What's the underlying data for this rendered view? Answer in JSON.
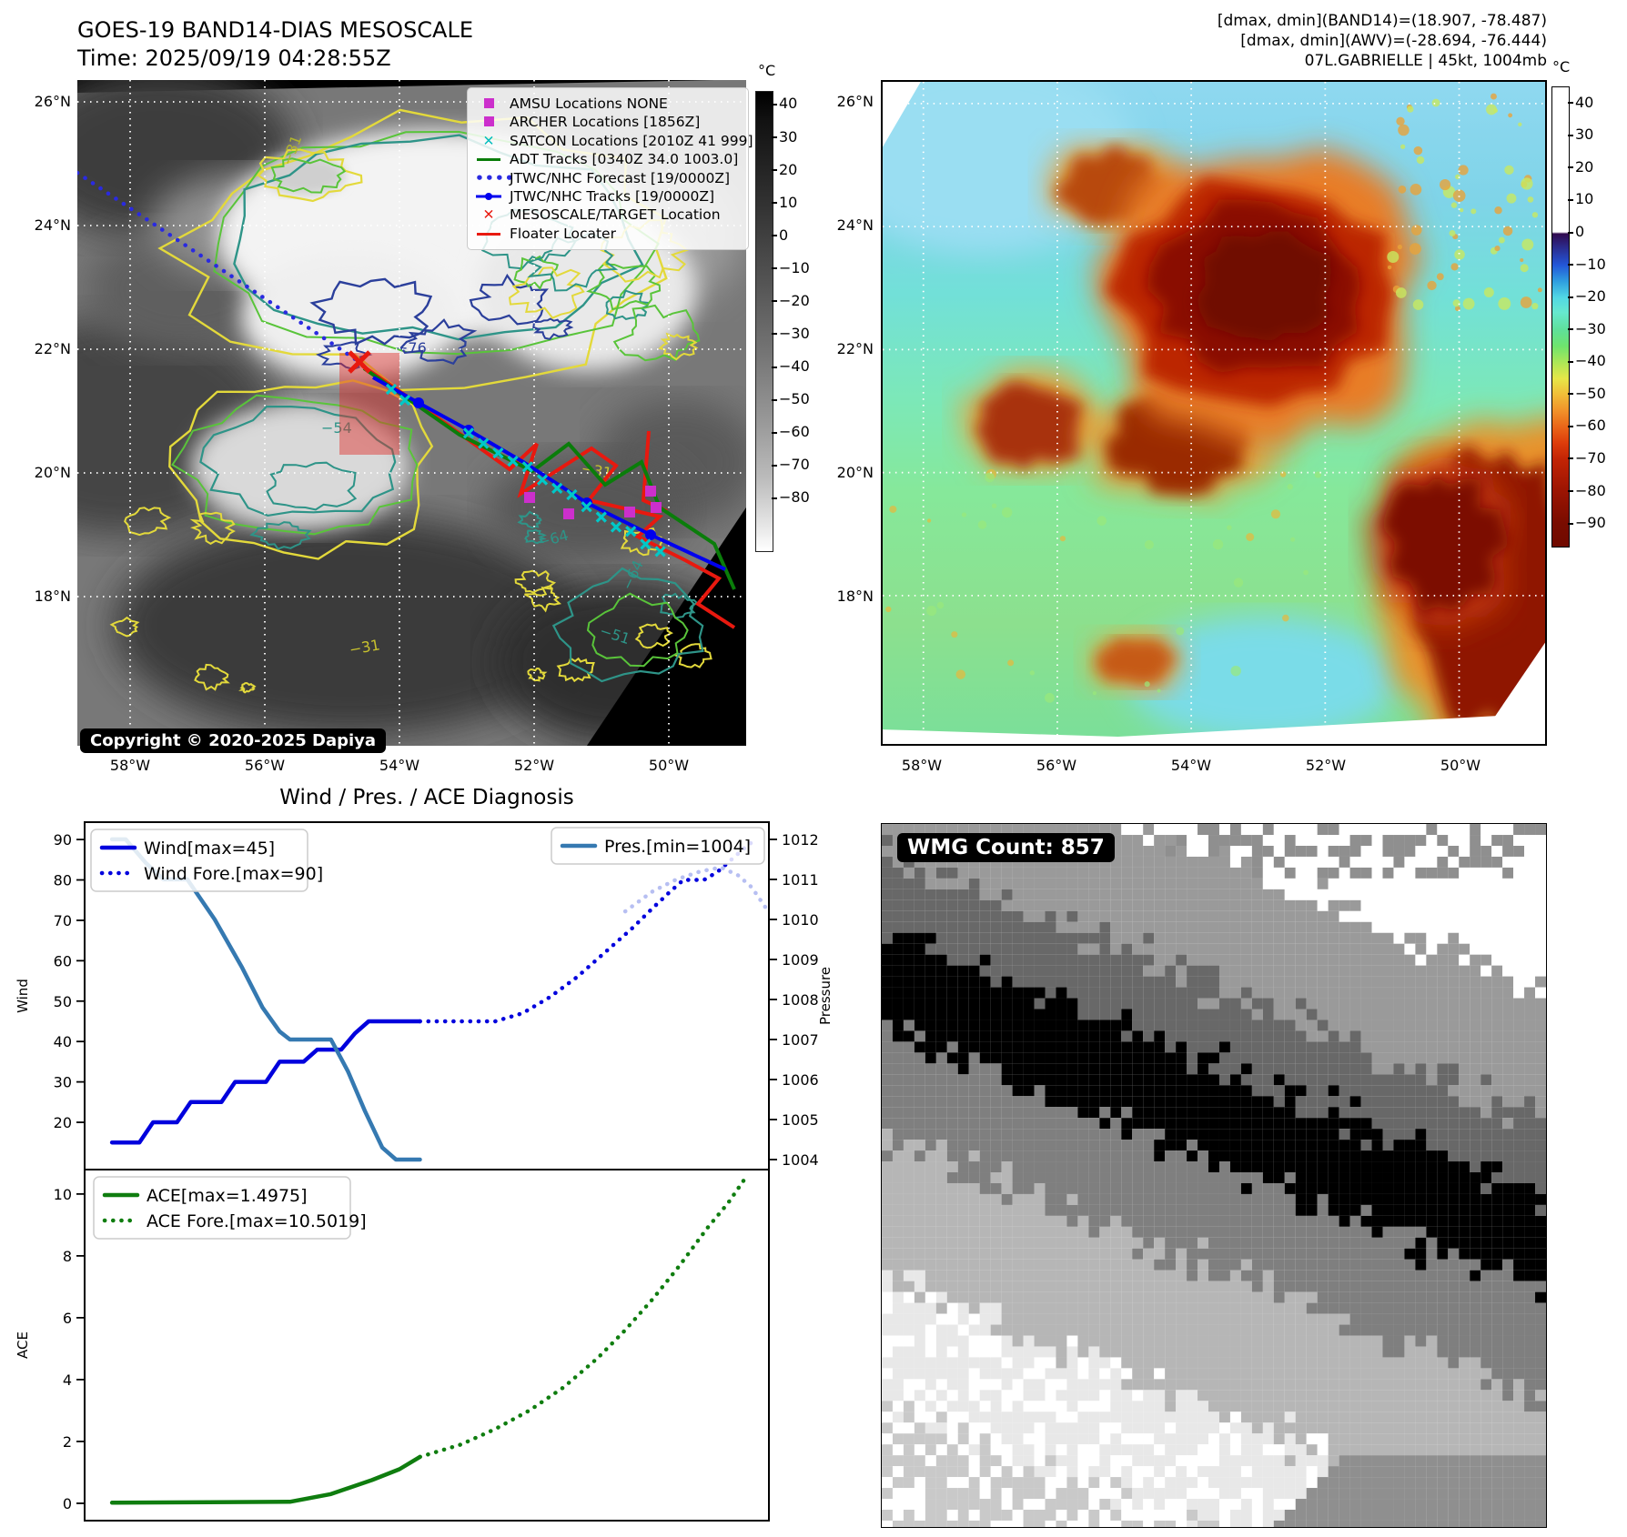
{
  "header": {
    "title_line1": "GOES-19 BAND14-DIAS MESOSCALE",
    "title_line2": "Time: 2025/09/19 04:28:55Z",
    "right_line1": "[dmax, dmin](BAND14)=(18.907, -78.487)",
    "right_line2": "[dmax, dmin](AWV)=(-28.694, -76.444)",
    "right_line3": "07L.GABRIELLE | 45kt, 1004mb"
  },
  "left_map": {
    "legend": [
      {
        "label": "AMSU Locations NONE",
        "symbol": "square",
        "color": "#cc2fcc"
      },
      {
        "label": "ARCHER Locations [1856Z]",
        "symbol": "square",
        "color": "#cc2fcc"
      },
      {
        "label": "SATCON Locations [2010Z 41 999]",
        "symbol": "x",
        "color": "#00bdbd"
      },
      {
        "label": "ADT Tracks [0340Z 34.0 1003.0]",
        "symbol": "line",
        "color": "#0a7d0a"
      },
      {
        "label": "JTWC/NHC Forecast [19/0000Z]",
        "symbol": "dotted",
        "color": "#2a2ae0"
      },
      {
        "label": "JTWC/NHC Tracks [19/0000Z]",
        "symbol": "line-dot",
        "color": "#0000ee"
      },
      {
        "label": "MESOSCALE/TARGET Location",
        "symbol": "x",
        "color": "#e8190f"
      },
      {
        "label": "Floater Locater",
        "symbol": "line",
        "color": "#e8190f"
      }
    ],
    "copyright": "Copyright © 2020-2025 Dapiya",
    "lat_ticks": [
      "26°N",
      "24°N",
      "22°N",
      "20°N",
      "18°N"
    ],
    "lon_ticks": [
      "58°W",
      "56°W",
      "54°W",
      "52°W",
      "50°W"
    ],
    "colorbar": {
      "title": "°C",
      "ticks": [
        40,
        30,
        20,
        10,
        0,
        -10,
        -20,
        -30,
        -40,
        -50,
        -60,
        -70,
        -80
      ]
    },
    "contour_labels": {
      "a": "−31",
      "b": "−76",
      "c": "−54",
      "d": "−64",
      "e": "−31",
      "f": "−64",
      "g": "−31",
      "h": "−51"
    }
  },
  "right_map": {
    "lat_ticks": [
      "26°N",
      "24°N",
      "22°N",
      "20°N",
      "18°N"
    ],
    "lon_ticks": [
      "58°W",
      "56°W",
      "54°W",
      "52°W",
      "50°W"
    ],
    "colorbar": {
      "title": "°C",
      "ticks": [
        40,
        30,
        20,
        10,
        0,
        -10,
        -20,
        -30,
        -40,
        -50,
        -60,
        -70,
        -80,
        -90
      ]
    }
  },
  "wmg": {
    "badge": "WMG Count: 857"
  },
  "chart_data": [
    {
      "type": "line",
      "title": "Wind / Pres. / ACE Diagnosis",
      "panel": "wind_pressure",
      "left_axis": {
        "label": "Wind",
        "ticks": [
          20,
          30,
          40,
          50,
          60,
          70,
          80,
          90
        ],
        "range": [
          8.3,
          94.3
        ]
      },
      "right_axis": {
        "label": "Pressure",
        "ticks": [
          1004,
          1005,
          1006,
          1007,
          1008,
          1009,
          1010,
          1011,
          1012
        ],
        "range": [
          1003.75,
          1012.43
        ]
      },
      "x_range": [
        0,
        1
      ],
      "grid": false,
      "series": [
        {
          "name": "Wind[max=45]",
          "axis": "left",
          "style": "solid",
          "color": "#0000dd",
          "legend": 1,
          "points": [
            [
              0.04,
              15
            ],
            [
              0.08,
              15
            ],
            [
              0.1,
              20
            ],
            [
              0.135,
              20
            ],
            [
              0.155,
              25
            ],
            [
              0.2,
              25
            ],
            [
              0.22,
              30
            ],
            [
              0.265,
              30
            ],
            [
              0.285,
              35
            ],
            [
              0.32,
              35
            ],
            [
              0.34,
              38
            ],
            [
              0.375,
              38
            ],
            [
              0.395,
              42
            ],
            [
              0.415,
              45
            ],
            [
              0.49,
              45
            ]
          ]
        },
        {
          "name": "Wind Fore.[max=90]",
          "axis": "left",
          "style": "dotted",
          "color": "#0000dd",
          "legend": 1,
          "points": [
            [
              0.49,
              45
            ],
            [
              0.6,
              45
            ],
            [
              0.64,
              47
            ],
            [
              0.68,
              51
            ],
            [
              0.72,
              56
            ],
            [
              0.76,
              62
            ],
            [
              0.8,
              68
            ],
            [
              0.83,
              73
            ],
            [
              0.855,
              77
            ],
            [
              0.875,
              80
            ],
            [
              0.905,
              80
            ],
            [
              0.925,
              82
            ],
            [
              0.945,
              85
            ],
            [
              0.965,
              88
            ],
            [
              0.98,
              90
            ]
          ]
        },
        {
          "name": "Pres.[min=1004]",
          "axis": "right",
          "style": "solid",
          "color": "#3579b1",
          "legend": 2,
          "points": [
            [
              0.04,
              1012
            ],
            [
              0.06,
              1012
            ],
            [
              0.09,
              1011.4
            ],
            [
              0.115,
              1011
            ],
            [
              0.15,
              1011
            ],
            [
              0.19,
              1010
            ],
            [
              0.23,
              1008.8
            ],
            [
              0.26,
              1007.8
            ],
            [
              0.285,
              1007.2
            ],
            [
              0.3,
              1007
            ],
            [
              0.36,
              1007
            ],
            [
              0.385,
              1006.2
            ],
            [
              0.41,
              1005.2
            ],
            [
              0.435,
              1004.3
            ],
            [
              0.455,
              1004
            ],
            [
              0.49,
              1004
            ]
          ]
        },
        {
          "name": "Pres. Fore.",
          "axis": "right",
          "style": "dotted",
          "color": "#b7bff2",
          "legend": 0,
          "points": [
            [
              0.79,
              1010.2
            ],
            [
              0.83,
              1010.7
            ],
            [
              0.865,
              1011.0
            ],
            [
              0.9,
              1011.2
            ],
            [
              0.93,
              1011.3
            ],
            [
              0.955,
              1011.1
            ],
            [
              0.975,
              1010.8
            ],
            [
              0.995,
              1010.3
            ]
          ]
        }
      ]
    },
    {
      "type": "line",
      "panel": "ace",
      "left_axis": {
        "label": "ACE",
        "ticks": [
          0,
          2,
          4,
          6,
          8,
          10
        ],
        "range": [
          -0.56,
          10.79
        ]
      },
      "x_range": [
        0,
        1
      ],
      "grid": false,
      "series": [
        {
          "name": "ACE[max=1.4975]",
          "axis": "left",
          "style": "solid",
          "color": "#0f7d0f",
          "legend": 3,
          "points": [
            [
              0.04,
              0.02
            ],
            [
              0.3,
              0.05
            ],
            [
              0.36,
              0.3
            ],
            [
              0.42,
              0.75
            ],
            [
              0.46,
              1.1
            ],
            [
              0.49,
              1.5
            ]
          ]
        },
        {
          "name": "ACE Fore.[max=10.5019]",
          "axis": "left",
          "style": "dotted",
          "color": "#0f7d0f",
          "legend": 3,
          "points": [
            [
              0.49,
              1.5
            ],
            [
              0.55,
              1.9
            ],
            [
              0.6,
              2.4
            ],
            [
              0.65,
              3.0
            ],
            [
              0.7,
              3.75
            ],
            [
              0.75,
              4.7
            ],
            [
              0.79,
              5.6
            ],
            [
              0.83,
              6.6
            ],
            [
              0.87,
              7.7
            ],
            [
              0.91,
              8.9
            ],
            [
              0.94,
              9.7
            ],
            [
              0.965,
              10.5
            ]
          ]
        }
      ]
    }
  ]
}
